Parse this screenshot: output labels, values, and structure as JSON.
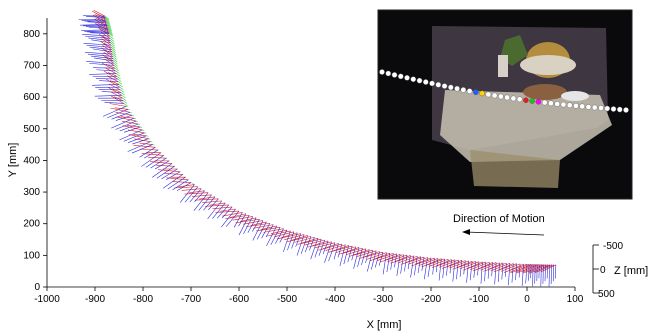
{
  "chart_data": {
    "type": "line",
    "xlabel": "X [mm]",
    "ylabel": "Y [mm]",
    "zlabel": "Z [mm]",
    "xlim": [
      -1000,
      100
    ],
    "ylim": [
      0,
      850
    ],
    "x_ticks": [
      -1000,
      -900,
      -800,
      -700,
      -600,
      -500,
      -400,
      -300,
      -200,
      -100,
      0,
      100
    ],
    "y_ticks": [
      0,
      100,
      200,
      300,
      400,
      500,
      600,
      700,
      800
    ],
    "z_ticks": [
      -500,
      0,
      500
    ],
    "grid": false,
    "annotation": "Direction of Motion",
    "trajectory": [
      {
        "x": 60,
        "y": 70
      },
      {
        "x": 0,
        "y": 72
      },
      {
        "x": -100,
        "y": 80
      },
      {
        "x": -200,
        "y": 92
      },
      {
        "x": -300,
        "y": 110
      },
      {
        "x": -400,
        "y": 140
      },
      {
        "x": -500,
        "y": 180
      },
      {
        "x": -600,
        "y": 240
      },
      {
        "x": -700,
        "y": 330
      },
      {
        "x": -780,
        "y": 450
      },
      {
        "x": -840,
        "y": 580
      },
      {
        "x": -860,
        "y": 700
      },
      {
        "x": -870,
        "y": 800
      },
      {
        "x": -880,
        "y": 860
      }
    ],
    "axes_colors": {
      "x_axis": "#e41a1a",
      "y_axis": "#2a2ae0",
      "z_axis": "#33cc33"
    }
  },
  "inset": {
    "description_icon": "camera-frame-photo-icon",
    "path_marker_colors": [
      "#ffffff",
      "#1f5fff",
      "#ffd400",
      "#e02020",
      "#20c020",
      "#ff00ff"
    ]
  }
}
